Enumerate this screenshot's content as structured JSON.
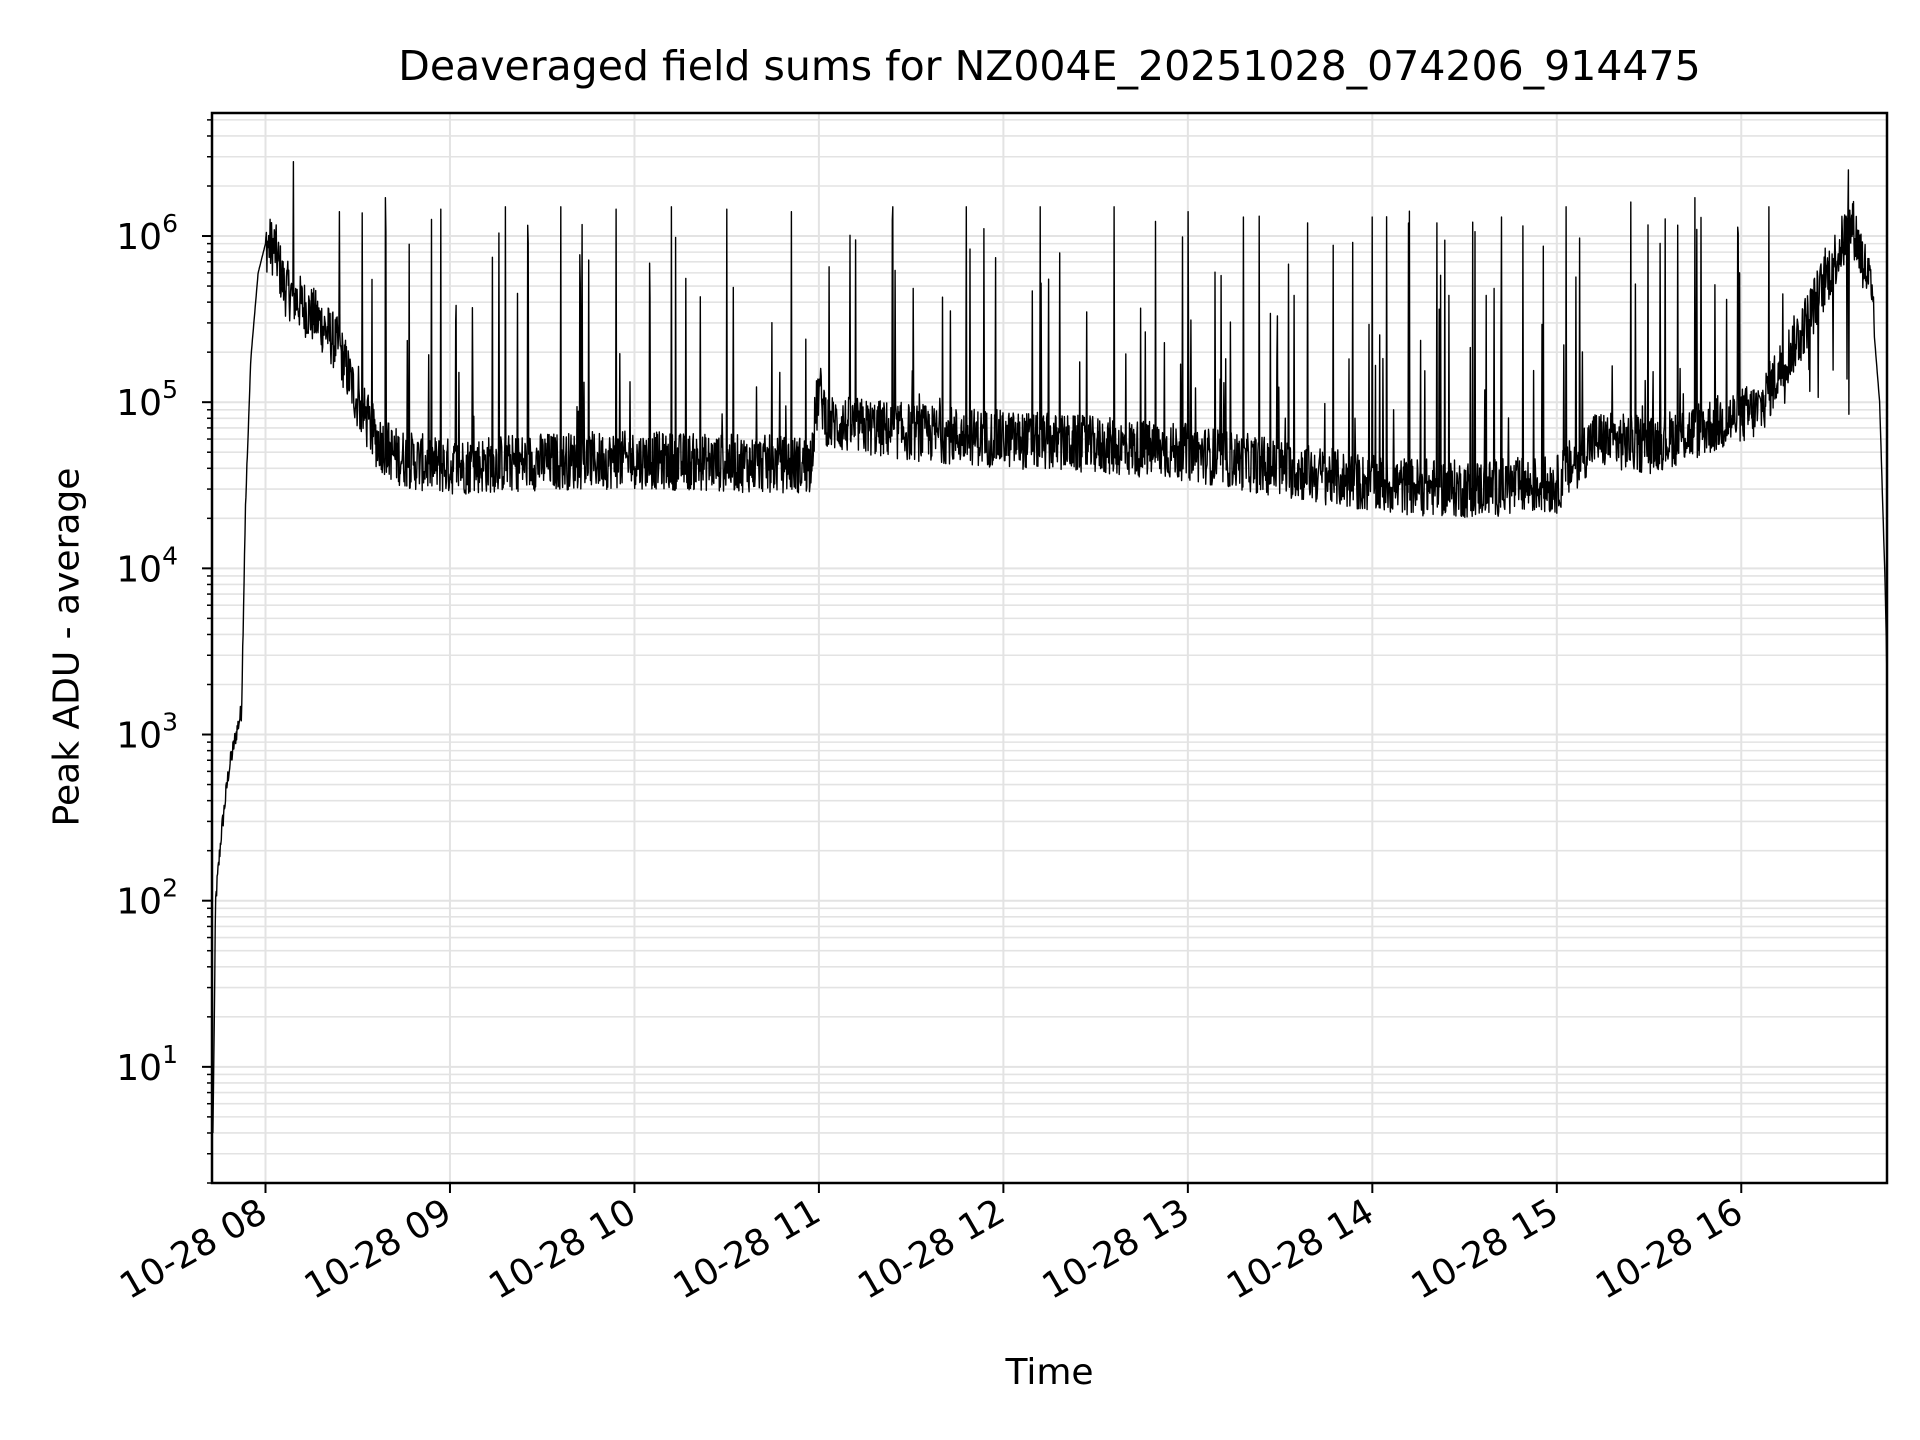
{
  "chart_data": {
    "type": "line",
    "title": "Deaveraged field sums for NZ004E_20251028_074206_914475",
    "xlabel": "Time",
    "ylabel": "Peak ADU - average",
    "yscale": "log",
    "ylim": [
      2,
      5500000
    ],
    "xlim_hours": [
      7.71,
      16.79
    ],
    "grid": true,
    "x_ticks": [
      {
        "hour": 8,
        "label": "10-28 08"
      },
      {
        "hour": 9,
        "label": "10-28 09"
      },
      {
        "hour": 10,
        "label": "10-28 10"
      },
      {
        "hour": 11,
        "label": "10-28 11"
      },
      {
        "hour": 12,
        "label": "10-28 12"
      },
      {
        "hour": 13,
        "label": "10-28 13"
      },
      {
        "hour": 14,
        "label": "10-28 14"
      },
      {
        "hour": 15,
        "label": "10-28 15"
      },
      {
        "hour": 16,
        "label": "10-28 16"
      }
    ],
    "y_ticks": [
      {
        "value": 10,
        "base": "10",
        "exp": "1"
      },
      {
        "value": 100,
        "base": "10",
        "exp": "2"
      },
      {
        "value": 1000,
        "base": "10",
        "exp": "3"
      },
      {
        "value": 10000,
        "base": "10",
        "exp": "4"
      },
      {
        "value": 100000,
        "base": "10",
        "exp": "5"
      },
      {
        "value": 1000000,
        "base": "10",
        "exp": "6"
      }
    ],
    "series": [
      {
        "name": "deaveraged field sum",
        "color": "#000000",
        "baseline": [
          [
            7.715,
            4
          ],
          [
            7.73,
            100
          ],
          [
            7.76,
            250
          ],
          [
            7.8,
            600
          ],
          [
            7.84,
            1000
          ],
          [
            7.87,
            1400
          ],
          [
            7.89,
            20000
          ],
          [
            7.92,
            180000
          ],
          [
            7.96,
            600000
          ],
          [
            8.0,
            900000
          ],
          [
            8.05,
            850000
          ],
          [
            8.1,
            500000
          ],
          [
            8.2,
            380000
          ],
          [
            8.3,
            300000
          ],
          [
            8.4,
            210000
          ],
          [
            8.5,
            100000
          ],
          [
            8.6,
            60000
          ],
          [
            8.7,
            48000
          ],
          [
            8.8,
            44000
          ],
          [
            9.0,
            41000
          ],
          [
            9.5,
            44000
          ],
          [
            10.0,
            45000
          ],
          [
            10.5,
            43000
          ],
          [
            10.95,
            42000
          ],
          [
            11.0,
            120000
          ],
          [
            11.05,
            75000
          ],
          [
            11.5,
            66000
          ],
          [
            12.0,
            60000
          ],
          [
            12.5,
            55000
          ],
          [
            13.0,
            50000
          ],
          [
            13.5,
            40000
          ],
          [
            14.0,
            32000
          ],
          [
            14.5,
            30000
          ],
          [
            15.0,
            32000
          ],
          [
            15.2,
            60000
          ],
          [
            15.5,
            55000
          ],
          [
            15.8,
            70000
          ],
          [
            16.1,
            90000
          ],
          [
            16.2,
            150000
          ],
          [
            16.35,
            300000
          ],
          [
            16.5,
            700000
          ],
          [
            16.6,
            1200000
          ],
          [
            16.7,
            500000
          ],
          [
            16.75,
            100000
          ],
          [
            16.78,
            8000
          ],
          [
            16.79,
            2200
          ]
        ],
        "spikes": [
          [
            8.15,
            2800000
          ],
          [
            8.4,
            1400000
          ],
          [
            8.65,
            1700000
          ],
          [
            8.95,
            1450000
          ],
          [
            9.3,
            1500000
          ],
          [
            9.6,
            1500000
          ],
          [
            9.9,
            1450000
          ],
          [
            10.2,
            1500000
          ],
          [
            10.5,
            1450000
          ],
          [
            10.85,
            1400000
          ],
          [
            11.4,
            1500000
          ],
          [
            11.8,
            1500000
          ],
          [
            12.2,
            1500000
          ],
          [
            12.6,
            1500000
          ],
          [
            13.0,
            1400000
          ],
          [
            13.3,
            1300000
          ],
          [
            13.65,
            1200000
          ],
          [
            14.0,
            1300000
          ],
          [
            14.35,
            1200000
          ],
          [
            14.7,
            1300000
          ],
          [
            15.05,
            1500000
          ],
          [
            15.4,
            1600000
          ],
          [
            15.75,
            1700000
          ],
          [
            16.15,
            1500000
          ],
          [
            16.58,
            2500000
          ]
        ]
      }
    ]
  }
}
